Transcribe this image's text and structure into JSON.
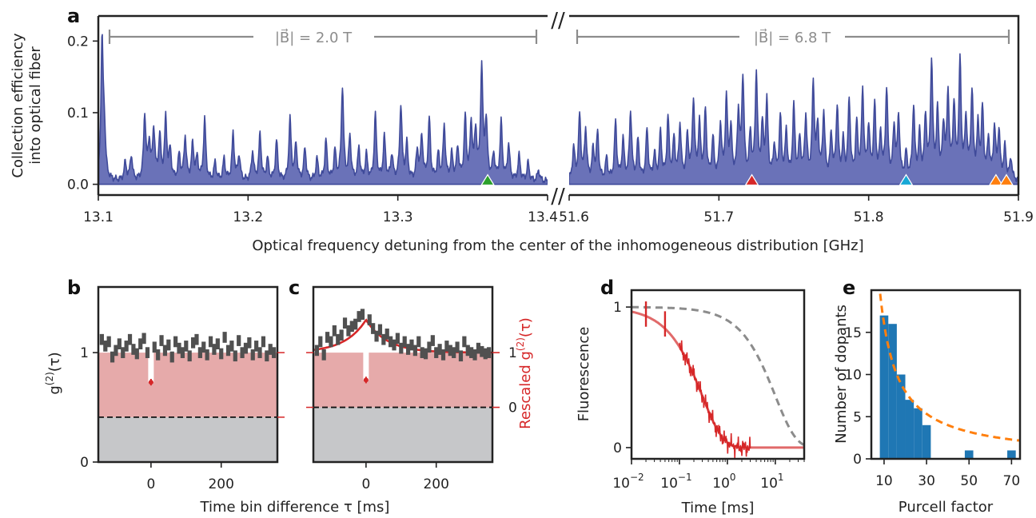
{
  "colors": {
    "spectrum_fill": "#6a72b8",
    "spectrum_line": "#3f4a9a",
    "bracket": "#8c8c8c",
    "g2_bars": "#505050",
    "shade_red": "#e6aaaa",
    "shade_gray": "#c6c7c9",
    "fit_red": "#d62728",
    "fit_light_red": "#e16a6a",
    "dashed_gray": "#8c8c8c",
    "hist_blue": "#1f77b4",
    "dashed_orange": "#ff7f0e",
    "marker_green": "#2ca02c",
    "marker_red": "#d62728",
    "marker_cyan": "#17a8d6",
    "marker_orange": "#ff7f0e"
  },
  "chart_data": [
    {
      "panel": "a",
      "type": "line",
      "ylabel_line1": "Collection efficiency",
      "ylabel_line2": "into optical fiber",
      "xlabel": "Optical frequency detuning from the center of the inhomogeneous distribution [GHz]",
      "ylim": [
        -0.015,
        0.235
      ],
      "y_ticks": [
        0.0,
        0.1,
        0.2
      ],
      "y_tick_labels": [
        "0.0",
        "0.1",
        "0.2"
      ],
      "axis_break": "//",
      "segments": [
        {
          "bracket_label": "|B⃗| = 2.0 T",
          "xlim": [
            13.1,
            13.4
          ],
          "x_ticks": [
            13.1,
            13.2,
            13.3,
            13.4
          ],
          "x_tick_labels": [
            "13.1",
            "13.2",
            "13.3",
            "13.4"
          ],
          "peaks": [
            [
              13.1025,
              0.19
            ],
            [
              13.104,
              0.06
            ],
            [
              13.118,
              0.025
            ],
            [
              13.122,
              0.035
            ],
            [
              13.131,
              0.09
            ],
            [
              13.134,
              0.05
            ],
            [
              13.137,
              0.07
            ],
            [
              13.141,
              0.06
            ],
            [
              13.145,
              0.085
            ],
            [
              13.148,
              0.04
            ],
            [
              13.154,
              0.035
            ],
            [
              13.158,
              0.06
            ],
            [
              13.163,
              0.05
            ],
            [
              13.166,
              0.03
            ],
            [
              13.171,
              0.085
            ],
            [
              13.178,
              0.025
            ],
            [
              13.184,
              0.03
            ],
            [
              13.19,
              0.065
            ],
            [
              13.194,
              0.035
            ],
            [
              13.203,
              0.04
            ],
            [
              13.208,
              0.065
            ],
            [
              13.213,
              0.03
            ],
            [
              13.219,
              0.055
            ],
            [
              13.228,
              0.085
            ],
            [
              13.232,
              0.05
            ],
            [
              13.238,
              0.045
            ],
            [
              13.246,
              0.03
            ],
            [
              13.252,
              0.055
            ],
            [
              13.258,
              0.04
            ],
            [
              13.263,
              0.13
            ],
            [
              13.268,
              0.06
            ],
            [
              13.274,
              0.045
            ],
            [
              13.279,
              0.035
            ],
            [
              13.285,
              0.09
            ],
            [
              13.291,
              0.06
            ],
            [
              13.296,
              0.035
            ],
            [
              13.302,
              0.105
            ],
            [
              13.306,
              0.05
            ],
            [
              13.313,
              0.04
            ],
            [
              13.316,
              0.06
            ],
            [
              13.321,
              0.085
            ],
            [
              13.327,
              0.035
            ],
            [
              13.331,
              0.075
            ],
            [
              13.336,
              0.035
            ],
            [
              13.34,
              0.045
            ],
            [
              13.345,
              0.085
            ],
            [
              13.349,
              0.075
            ],
            [
              13.352,
              0.065
            ],
            [
              13.356,
              0.155
            ],
            [
              13.359,
              0.08
            ],
            [
              13.364,
              0.035
            ],
            [
              13.369,
              0.08
            ],
            [
              13.374,
              0.05
            ],
            [
              13.381,
              0.035
            ],
            [
              13.387,
              0.025
            ],
            [
              13.394,
              0.015
            ]
          ],
          "markers": [
            {
              "x": 13.36,
              "color": "#2ca02c"
            }
          ]
        },
        {
          "bracket_label": "|B⃗| = 6.8 T",
          "xlim": [
            51.6,
            51.9
          ],
          "x_ticks": [
            51.6,
            51.7,
            51.8,
            51.9
          ],
          "x_tick_labels": [
            "51.6",
            "51.7",
            "51.8",
            "51.9"
          ],
          "peaks": [
            [
              51.603,
              0.045
            ],
            [
              51.607,
              0.09
            ],
            [
              51.611,
              0.07
            ],
            [
              51.616,
              0.04
            ],
            [
              51.619,
              0.065
            ],
            [
              51.625,
              0.03
            ],
            [
              51.631,
              0.08
            ],
            [
              51.636,
              0.055
            ],
            [
              51.641,
              0.095
            ],
            [
              51.646,
              0.055
            ],
            [
              51.652,
              0.07
            ],
            [
              51.657,
              0.035
            ],
            [
              51.661,
              0.065
            ],
            [
              51.666,
              0.085
            ],
            [
              51.67,
              0.055
            ],
            [
              51.674,
              0.075
            ],
            [
              51.679,
              0.06
            ],
            [
              51.683,
              0.11
            ],
            [
              51.687,
              0.075
            ],
            [
              51.691,
              0.095
            ],
            [
              51.696,
              0.055
            ],
            [
              51.701,
              0.075
            ],
            [
              51.705,
              0.11
            ],
            [
              51.708,
              0.065
            ],
            [
              51.713,
              0.09
            ],
            [
              51.716,
              0.14
            ],
            [
              51.721,
              0.06
            ],
            [
              51.725,
              0.145
            ],
            [
              51.729,
              0.07
            ],
            [
              51.732,
              0.105
            ],
            [
              51.737,
              0.045
            ],
            [
              51.741,
              0.085
            ],
            [
              51.745,
              0.065
            ],
            [
              51.75,
              0.1
            ],
            [
              51.754,
              0.055
            ],
            [
              51.758,
              0.085
            ],
            [
              51.763,
              0.13
            ],
            [
              51.766,
              0.07
            ],
            [
              51.77,
              0.09
            ],
            [
              51.775,
              0.06
            ],
            [
              51.779,
              0.1
            ],
            [
              51.783,
              0.05
            ],
            [
              51.787,
              0.11
            ],
            [
              51.792,
              0.075
            ],
            [
              51.796,
              0.12
            ],
            [
              51.8,
              0.07
            ],
            [
              51.804,
              0.1
            ],
            [
              51.808,
              0.06
            ],
            [
              51.812,
              0.125
            ],
            [
              51.817,
              0.07
            ],
            [
              51.82,
              0.085
            ],
            [
              51.825,
              0.035
            ],
            [
              51.83,
              0.1
            ],
            [
              51.834,
              0.06
            ],
            [
              51.838,
              0.085
            ],
            [
              51.842,
              0.16
            ],
            [
              51.846,
              0.09
            ],
            [
              51.85,
              0.07
            ],
            [
              51.853,
              0.115
            ],
            [
              51.857,
              0.1
            ],
            [
              51.861,
              0.16
            ],
            [
              51.865,
              0.08
            ],
            [
              51.869,
              0.12
            ],
            [
              51.873,
              0.07
            ],
            [
              51.876,
              0.095
            ],
            [
              51.88,
              0.055
            ],
            [
              51.884,
              0.07
            ],
            [
              51.887,
              0.065
            ],
            [
              51.891,
              0.045
            ],
            [
              51.895,
              0.03
            ]
          ],
          "markers": [
            {
              "x": 51.722,
              "color": "#d62728"
            },
            {
              "x": 51.825,
              "color": "#17a8d6"
            },
            {
              "x": 51.885,
              "color": "#ff7f0e"
            },
            {
              "x": 51.892,
              "color": "#ff7f0e"
            }
          ]
        }
      ]
    },
    {
      "panel": "b",
      "type": "bar",
      "xlabel": "Time bin difference τ [ms]",
      "ylabel": "g(2)(τ)",
      "ylabel_sup": "(2)",
      "xlim": [
        -150,
        360
      ],
      "ylim": [
        0,
        1.6
      ],
      "x_ticks": [
        0,
        200
      ],
      "x_tick_labels": [
        "0",
        "200"
      ],
      "y_ticks": [
        0,
        1
      ],
      "y_tick_labels": [
        "0",
        "1"
      ],
      "background_level": 0.41,
      "reference_level": 1.0,
      "zero_delay_value": 0.73,
      "tau": [
        -140,
        -130,
        -120,
        -110,
        -100,
        -90,
        -80,
        -70,
        -60,
        -50,
        -40,
        -30,
        -20,
        -10,
        0,
        10,
        20,
        30,
        40,
        50,
        60,
        70,
        80,
        90,
        100,
        110,
        120,
        130,
        140,
        150,
        160,
        170,
        180,
        190,
        200,
        210,
        220,
        230,
        240,
        250,
        260,
        270,
        280,
        290,
        300,
        310,
        320,
        330,
        340,
        350
      ],
      "values": [
        1.12,
        1.06,
        1.1,
        0.96,
        1.02,
        1.08,
        1.0,
        1.06,
        1.12,
        1.03,
        0.99,
        1.08,
        1.13,
        1.0,
        0.73,
        1.05,
        0.98,
        1.11,
        1.02,
        1.07,
        0.96,
        1.1,
        1.04,
        1.0,
        1.06,
        0.97,
        1.09,
        1.12,
        1.0,
        1.05,
        0.98,
        1.1,
        1.03,
        1.08,
        0.99,
        1.14,
        1.02,
        1.06,
        0.97,
        1.11,
        1.0,
        1.04,
        1.09,
        0.98,
        1.06,
        1.0,
        1.1,
        0.97,
        1.03,
        1.0
      ]
    },
    {
      "panel": "c",
      "type": "bar",
      "right_ylabel": "Rescaled g(2)(τ)",
      "right_ylabel_sup": "(2)",
      "xlim": [
        -150,
        360
      ],
      "ylim": [
        0,
        1.6
      ],
      "x_ticks": [
        0,
        200
      ],
      "x_tick_labels": [
        "0",
        "200"
      ],
      "right_ticks": [
        0,
        1
      ],
      "right_tick_labels": [
        "0",
        "1"
      ],
      "right_tick_positions": [
        0.5,
        1.0
      ],
      "background_level": 0.5,
      "reference_level": 1.0,
      "zero_delay_value": 0.75,
      "fit": {
        "baseline": 1.0,
        "bump": 0.3,
        "decay_ms": 60
      },
      "tau": [
        -140,
        -130,
        -120,
        -110,
        -100,
        -90,
        -80,
        -70,
        -60,
        -50,
        -40,
        -30,
        -20,
        -10,
        0,
        10,
        20,
        30,
        40,
        50,
        60,
        70,
        80,
        90,
        100,
        110,
        120,
        130,
        140,
        150,
        160,
        170,
        180,
        190,
        200,
        210,
        220,
        230,
        240,
        250,
        260,
        270,
        280,
        290,
        300,
        310,
        320,
        330,
        340,
        350
      ],
      "values": [
        1.02,
        1.1,
        0.98,
        1.14,
        1.1,
        1.2,
        1.12,
        1.16,
        1.27,
        1.2,
        1.24,
        1.26,
        1.33,
        1.35,
        0.75,
        1.3,
        1.22,
        1.15,
        1.21,
        1.12,
        1.17,
        1.1,
        1.07,
        1.13,
        1.04,
        1.1,
        1.03,
        1.07,
        1.02,
        1.1,
        1.0,
        0.99,
        1.05,
        1.11,
        1.0,
        1.03,
        0.98,
        1.06,
        1.02,
        1.0,
        1.05,
        0.97,
        1.1,
        1.02,
        1.0,
        0.98,
        1.04,
        1.01,
        0.99,
        1.0
      ]
    },
    {
      "panel": "d",
      "type": "line",
      "xlabel": "Time [ms]",
      "ylabel": "Fluorescence",
      "x_scale": "log",
      "xlim": [
        0.01,
        40
      ],
      "ylim": [
        -0.08,
        1.12
      ],
      "x_ticks": [
        0.01,
        0.1,
        1,
        10
      ],
      "x_tick_base": [
        "10",
        "10",
        "10",
        "10"
      ],
      "x_tick_exp": [
        "−2",
        "−1",
        "0",
        "1"
      ],
      "y_ticks": [
        0,
        1
      ],
      "y_tick_labels": [
        "0",
        "1"
      ],
      "fit_decay_ms": 0.3,
      "reference_decay_ms": 10,
      "fit_end_ms": 40,
      "data_start_ms": 0.1,
      "data_end_ms": 3,
      "early_points": [
        {
          "t": 0.02,
          "y": 0.95
        },
        {
          "t": 0.05,
          "y": 0.88
        }
      ]
    },
    {
      "panel": "e",
      "type": "bar",
      "xlabel": "Purcell factor",
      "ylabel": "Number of dopants",
      "xlim": [
        4,
        74
      ],
      "ylim": [
        0,
        20
      ],
      "x_ticks": [
        10,
        30,
        50,
        70
      ],
      "x_tick_labels": [
        "10",
        "30",
        "50",
        "70"
      ],
      "y_ticks": [
        0,
        5,
        10,
        15
      ],
      "y_tick_labels": [
        "0",
        "5",
        "10",
        "15"
      ],
      "bin_edges": [
        8,
        12,
        16,
        20,
        24,
        28,
        32,
        36,
        40,
        44,
        48,
        52,
        56,
        60,
        64,
        68,
        72
      ],
      "counts": [
        17,
        16,
        10,
        7,
        6,
        4,
        0,
        0,
        0,
        0,
        1,
        0,
        0,
        0,
        0,
        1
      ],
      "fit_amplitude": 160,
      "fit_power": 1
    }
  ]
}
